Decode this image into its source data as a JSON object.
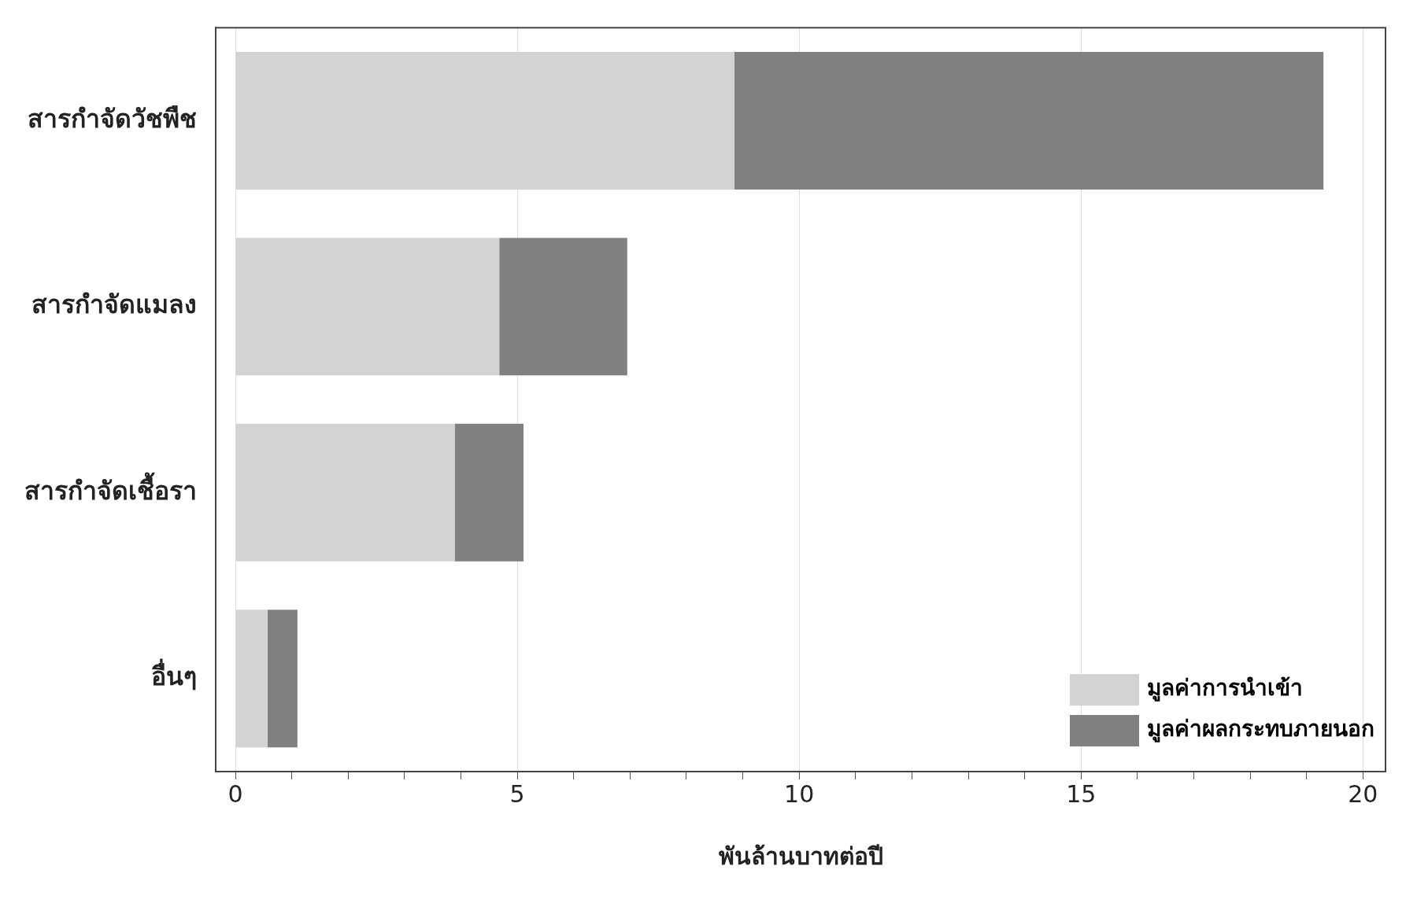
{
  "chart_data": {
    "type": "bar",
    "orientation": "horizontal",
    "stacked": true,
    "categories": [
      "สารกำจัดวัชพืช",
      "สารกำจัดแมลง",
      "สารกำจัดเชื้อรา",
      "อื่นๆ"
    ],
    "series": [
      {
        "name": "มูลค่าการนำเข้า",
        "color": "#d3d3d3",
        "values": [
          8.85,
          4.68,
          3.89,
          0.57
        ]
      },
      {
        "name": "มูลค่าผลกระทบภายนอก",
        "color": "#808080",
        "values": [
          10.45,
          2.27,
          1.22,
          0.53
        ]
      }
    ],
    "xlabel": "พันล้านบาทต่อปี",
    "xlim": [
      -0.35,
      20.4
    ],
    "xticks": [
      0,
      {
        "value": 1,
        "label": null
      },
      {
        "value": 2,
        "label": null
      },
      {
        "value": 3,
        "label": null
      },
      {
        "value": 4,
        "label": null
      },
      5,
      {
        "value": 6,
        "label": null
      },
      {
        "value": 7,
        "label": null
      },
      {
        "value": 8,
        "label": null
      },
      {
        "value": 9,
        "label": null
      },
      10,
      {
        "value": 11,
        "label": null
      },
      {
        "value": 12,
        "label": null
      },
      {
        "value": 13,
        "label": null
      },
      {
        "value": 14,
        "label": null
      },
      15,
      {
        "value": 16,
        "label": null
      },
      {
        "value": 17,
        "label": null
      },
      {
        "value": 18,
        "label": null
      },
      {
        "value": 19,
        "label": null
      },
      20
    ],
    "grid": "x",
    "legend": "bottom right"
  }
}
